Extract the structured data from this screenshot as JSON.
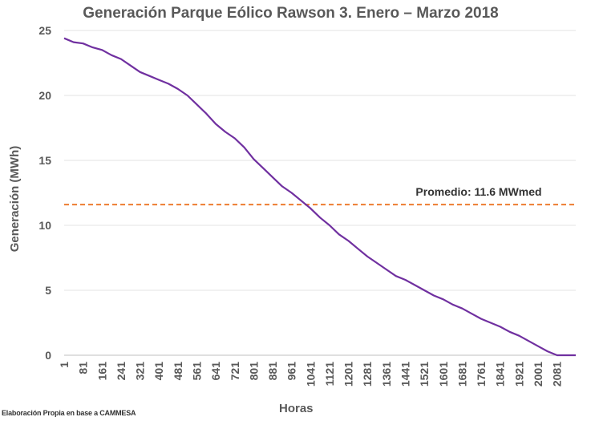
{
  "chart_data": {
    "type": "line",
    "title": "Generación Parque Eólico Rawson 3. Enero – Marzo 2018",
    "xlabel": "Horas",
    "ylabel": "Generación (MWh)",
    "ylim": [
      0,
      25
    ],
    "yticks": [
      "0",
      "5",
      "10",
      "15",
      "20",
      "25"
    ],
    "xticks": [
      "1",
      "81",
      "161",
      "241",
      "321",
      "401",
      "481",
      "561",
      "641",
      "721",
      "801",
      "881",
      "961",
      "1041",
      "1121",
      "1201",
      "1281",
      "1361",
      "1441",
      "1521",
      "1601",
      "1681",
      "1761",
      "1841",
      "1921",
      "2001",
      "2081"
    ],
    "x_range": [
      1,
      2160
    ],
    "grid": "horizontal",
    "series": [
      {
        "color": "#7030a0",
        "points": [
          [
            1,
            24.4
          ],
          [
            41,
            24.1
          ],
          [
            81,
            24.0
          ],
          [
            121,
            23.7
          ],
          [
            161,
            23.5
          ],
          [
            201,
            23.1
          ],
          [
            241,
            22.8
          ],
          [
            281,
            22.3
          ],
          [
            321,
            21.8
          ],
          [
            361,
            21.5
          ],
          [
            401,
            21.2
          ],
          [
            441,
            20.9
          ],
          [
            481,
            20.5
          ],
          [
            521,
            20.0
          ],
          [
            561,
            19.3
          ],
          [
            601,
            18.6
          ],
          [
            641,
            17.8
          ],
          [
            681,
            17.2
          ],
          [
            721,
            16.7
          ],
          [
            761,
            16.0
          ],
          [
            801,
            15.1
          ],
          [
            841,
            14.4
          ],
          [
            881,
            13.7
          ],
          [
            921,
            13.0
          ],
          [
            961,
            12.5
          ],
          [
            1001,
            11.9
          ],
          [
            1041,
            11.3
          ],
          [
            1081,
            10.6
          ],
          [
            1121,
            10.0
          ],
          [
            1161,
            9.3
          ],
          [
            1201,
            8.8
          ],
          [
            1241,
            8.2
          ],
          [
            1281,
            7.6
          ],
          [
            1321,
            7.1
          ],
          [
            1361,
            6.6
          ],
          [
            1401,
            6.1
          ],
          [
            1441,
            5.8
          ],
          [
            1481,
            5.4
          ],
          [
            1521,
            5.0
          ],
          [
            1561,
            4.6
          ],
          [
            1601,
            4.3
          ],
          [
            1641,
            3.9
          ],
          [
            1681,
            3.6
          ],
          [
            1721,
            3.2
          ],
          [
            1761,
            2.8
          ],
          [
            1801,
            2.5
          ],
          [
            1841,
            2.2
          ],
          [
            1881,
            1.8
          ],
          [
            1921,
            1.5
          ],
          [
            1961,
            1.1
          ],
          [
            2001,
            0.7
          ],
          [
            2041,
            0.3
          ],
          [
            2081,
            0.0
          ],
          [
            2160,
            0.0
          ]
        ]
      }
    ],
    "reference_line": {
      "value": 11.6,
      "label": "Promedio: 11.6 MWmed",
      "color": "#ed7d31"
    }
  },
  "source_note": "Elaboración Propia en base a CAMMESA"
}
